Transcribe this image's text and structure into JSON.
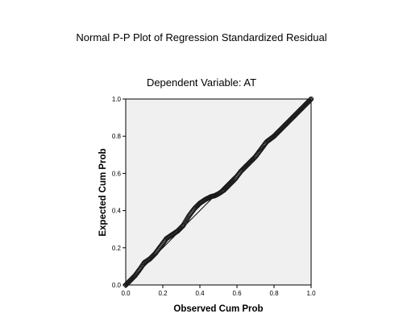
{
  "chart_data": {
    "type": "scatter",
    "title": "Normal P-P Plot of Regression Standardized Residual",
    "subtitle": "Dependent Variable: AT",
    "xlabel": "Observed Cum Prob",
    "ylabel": "Expected Cum Prob",
    "xlim": [
      0,
      1
    ],
    "ylim": [
      0,
      1
    ],
    "xticks": [
      "0.0",
      "0.2",
      "0.4",
      "0.6",
      "0.8",
      "1.0"
    ],
    "yticks": [
      "0.0",
      "0.2",
      "0.4",
      "0.6",
      "0.8",
      "1.0"
    ],
    "grid": false,
    "reference_line": {
      "from": [
        0,
        0
      ],
      "to": [
        1,
        1
      ]
    },
    "points_path": [
      [
        0.0,
        0.0
      ],
      [
        0.02,
        0.02
      ],
      [
        0.05,
        0.05
      ],
      [
        0.08,
        0.09
      ],
      [
        0.1,
        0.12
      ],
      [
        0.13,
        0.14
      ],
      [
        0.16,
        0.17
      ],
      [
        0.19,
        0.21
      ],
      [
        0.22,
        0.25
      ],
      [
        0.25,
        0.27
      ],
      [
        0.28,
        0.29
      ],
      [
        0.31,
        0.32
      ],
      [
        0.34,
        0.37
      ],
      [
        0.37,
        0.41
      ],
      [
        0.4,
        0.44
      ],
      [
        0.43,
        0.46
      ],
      [
        0.46,
        0.475
      ],
      [
        0.48,
        0.48
      ],
      [
        0.5,
        0.49
      ],
      [
        0.53,
        0.51
      ],
      [
        0.56,
        0.54
      ],
      [
        0.59,
        0.57
      ],
      [
        0.62,
        0.61
      ],
      [
        0.66,
        0.65
      ],
      [
        0.7,
        0.69
      ],
      [
        0.73,
        0.73
      ],
      [
        0.76,
        0.77
      ],
      [
        0.8,
        0.8
      ],
      [
        0.84,
        0.84
      ],
      [
        0.88,
        0.88
      ],
      [
        0.91,
        0.91
      ],
      [
        0.94,
        0.94
      ],
      [
        0.97,
        0.97
      ],
      [
        0.99,
        0.99
      ],
      [
        1.0,
        1.0
      ]
    ],
    "colors": {
      "plot_background": "#f0f0f0",
      "points": "#1a1a1a",
      "reference_line": "#000000",
      "frame": "#000000"
    }
  }
}
